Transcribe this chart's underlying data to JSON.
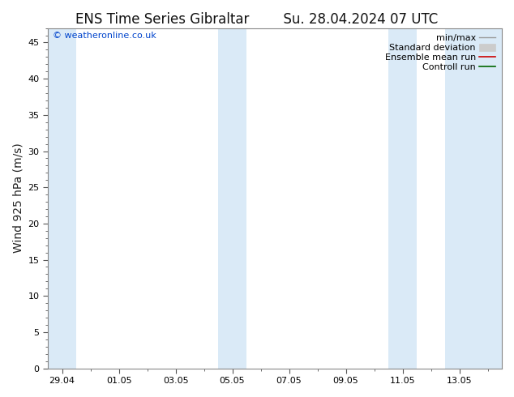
{
  "title_left": "ENS Time Series Gibraltar",
  "title_right": "Su. 28.04.2024 07 UTC",
  "ylabel": "Wind 925 hPa (m/s)",
  "watermark": "© weatheronline.co.uk",
  "background_color": "#ffffff",
  "plot_bg_color": "#ffffff",
  "ylim": [
    0,
    47
  ],
  "yticks": [
    0,
    5,
    10,
    15,
    20,
    25,
    30,
    35,
    40,
    45
  ],
  "xlim": [
    -0.5,
    15.5
  ],
  "xtick_labels": [
    "29.04",
    "01.05",
    "03.05",
    "05.05",
    "07.05",
    "09.05",
    "11.05",
    "13.05"
  ],
  "xtick_positions": [
    0,
    2,
    4,
    6,
    8,
    10,
    12,
    14
  ],
  "shaded_bands": [
    {
      "x_start": -0.5,
      "x_end": 0.5,
      "color": "#daeaf7"
    },
    {
      "x_start": 5.5,
      "x_end": 6.5,
      "color": "#daeaf7"
    },
    {
      "x_start": 11.5,
      "x_end": 12.5,
      "color": "#daeaf7"
    },
    {
      "x_start": 13.5,
      "x_end": 15.5,
      "color": "#daeaf7"
    }
  ],
  "title_fontsize": 12,
  "ylabel_fontsize": 10,
  "watermark_color": "#0044cc",
  "tick_fontsize": 8,
  "legend_fontsize": 8,
  "spine_color": "#888888"
}
